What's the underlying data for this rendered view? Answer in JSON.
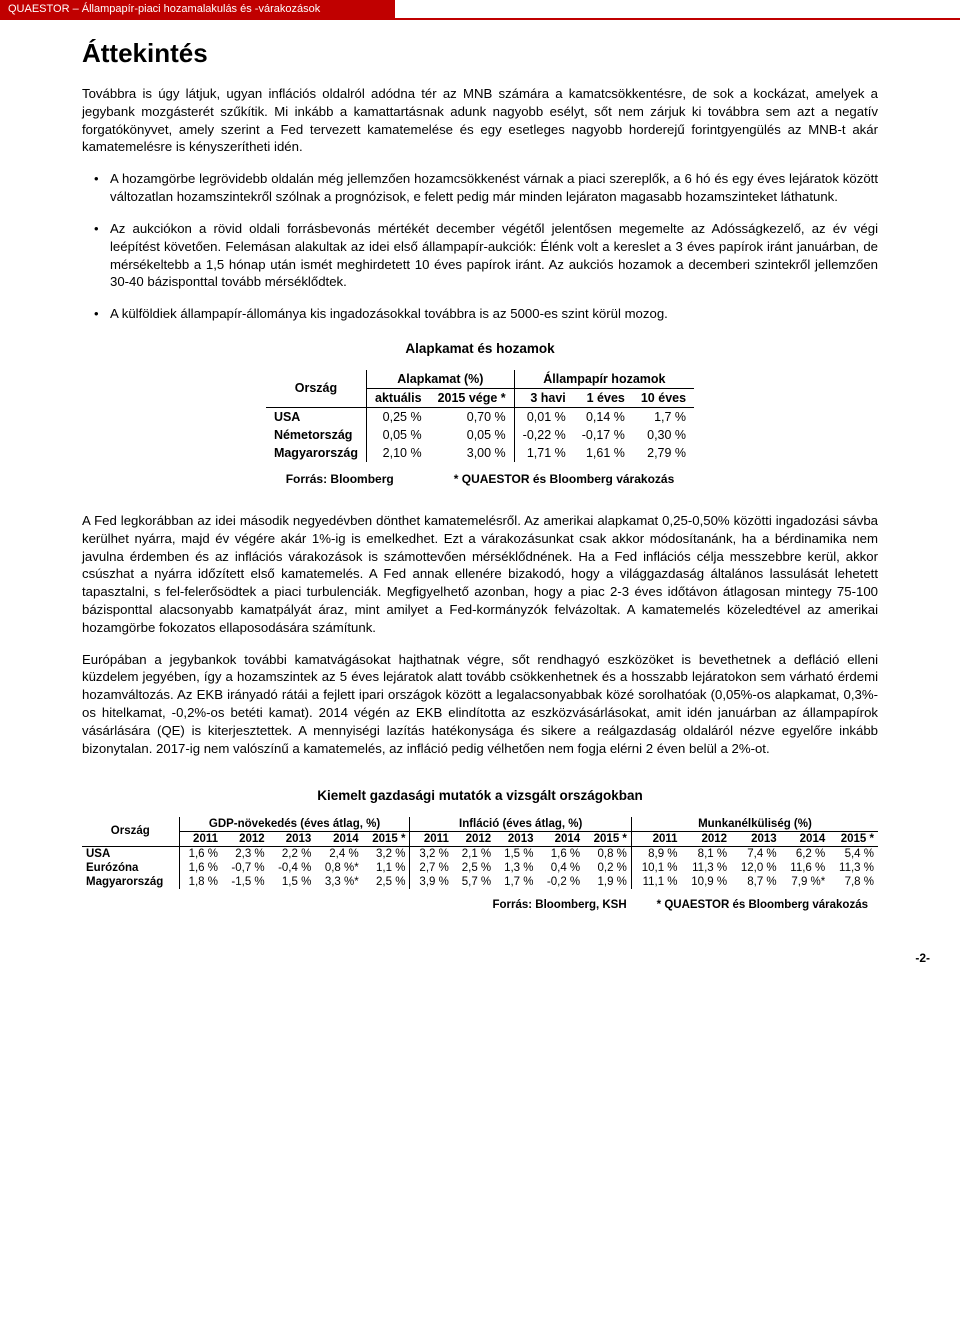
{
  "header": {
    "bar_text": "QUAESTOR – Állampapír-piaci hozamalakulás és -várakozások"
  },
  "title": "Áttekintés",
  "intro": "Továbbra is úgy látjuk, ugyan inflációs oldalról adódna tér az MNB számára a kamatcsökkentésre, de sok a kockázat, amelyek a jegybank mozgásterét szűkítik. Mi inkább a kamattartásnak adunk nagyobb esélyt, sőt nem zárjuk ki továbbra sem azt a negatív forgatókönyvet, amely szerint a Fed tervezett kamatemelése és egy esetleges nagyobb horderejű forintgyengülés az MNB-t akár kamatemelésre is kényszerítheti idén.",
  "bullets": [
    "A hozamgörbe legrövidebb oldalán még jellemzően hozamcsökkenést várnak a piaci szereplők, a 6 hó és egy éves lejáratok között változatlan hozamszintekről szólnak a prognózisok, e felett pedig már minden lejáraton magasabb hozamszinteket láthatunk.",
    "Az aukciókon a rövid oldali forrásbevonás mértékét december végétől jelentősen megemelte az Adósságkezelő, az év végi leépítést követően. Felemásan alakultak az idei első állampapír-aukciók: Élénk volt a kereslet a 3 éves papírok iránt januárban, de mérsékeltebb a 1,5 hónap után ismét meghirdetett 10 éves papírok iránt. Az aukciós hozamok a decemberi szintekről jellemzően 30-40 bázisponttal tovább mérséklődtek.",
    "A külföldiek állampapír-állománya kis ingadozásokkal továbbra is az 5000-es szint körül mozog."
  ],
  "section1_heading": "Alapkamat és hozamok",
  "table1": {
    "head_country": "Ország",
    "head_alapkamat": "Alapkamat (%)",
    "head_allampapir": "Állampapír hozamok",
    "sub_aktualis": "aktuális",
    "sub_2015vege": "2015 vége *",
    "sub_3havi": "3 havi",
    "sub_1eves": "1 éves",
    "sub_10eves": "10 éves",
    "rows": [
      {
        "country": "USA",
        "aktualis": "0,25 %",
        "vege": "0,70 %",
        "h3": "0,01 %",
        "e1": "0,14 %",
        "e10": "1,7 %"
      },
      {
        "country": "Németország",
        "aktualis": "0,05 %",
        "vege": "0,05 %",
        "h3": "-0,22 %",
        "e1": "-0,17 %",
        "e10": "0,30 %"
      },
      {
        "country": "Magyarország",
        "aktualis": "2,10 %",
        "vege": "3,00 %",
        "h3": "1,71 %",
        "e1": "1,61 %",
        "e10": "2,79 %"
      }
    ],
    "footer_left": "Forrás: Bloomberg",
    "footer_right": "* QUAESTOR és Bloomberg várakozás"
  },
  "para1": "A Fed legkorábban az idei második negyedévben dönthet kamatemelésről. Az amerikai alapkamat 0,25-0,50% közötti ingadozási sávba kerülhet nyárra, majd év végére akár 1%-ig is emelkedhet. Ezt a várakozásunkat csak akkor módosítanánk, ha a bérdinamika nem javulna érdemben és az inflációs várakozások is számottevően mérséklődnének. Ha a Fed inflációs célja messzebbre kerül, akkor csúszhat a nyárra időzített első kamatemelés. A Fed annak ellenére bizakodó, hogy a világgazdaság általános lassulását lehetett tapasztalni, s fel-felerősödtek a piaci turbulenciák. Megfigyelhető azonban, hogy a piac 2-3 éves időtávon átlagosan mintegy 75-100 bázisponttal alacsonyabb kamatpályát áraz, mint amilyet a Fed-kormányzók felvázoltak. A kamatemelés közeledtével az amerikai hozamgörbe fokozatos ellaposodására számítunk.",
  "para2": "Európában a jegybankok további kamatvágásokat hajthatnak végre, sőt rendhagyó eszközöket is bevethetnek a defláció elleni küzdelem jegyében, így a hozamszintek az 5 éves lejáratok alatt tovább csökkenhetnek és a hosszabb lejáratokon sem várható érdemi hozamváltozás. Az EKB irányadó rátái a fejlett ipari országok között a legalacsonyabbak közé sorolhatóak (0,05%-os alapkamat, 0,3%-os hitelkamat, -0,2%-os betéti kamat). 2014 végén az EKB elindította az eszközvásárlásokat, amit idén januárban az állampapírok vásárlására (QE) is kiterjesztettek. A mennyiségi lazítás hatékonysága és sikere a reálgazdaság oldaláról nézve egyelőre inkább bizonytalan. 2017-ig nem valószínű a kamatemelés, az infláció pedig vélhetően nem fogja elérni 2 éven belül a 2%-ot.",
  "section2_heading": "Kiemelt gazdasági mutatók a vizsgált országokban",
  "table2": {
    "head_country": "Ország",
    "head_gdp": "GDP-növekedés (éves átlag, %)",
    "head_infl": "Infláció (éves átlag, %)",
    "head_munk": "Munkanélküliség (%)",
    "years": [
      "2011",
      "2012",
      "2013",
      "2014",
      "2015 *"
    ],
    "rows": [
      {
        "country": "USA",
        "gdp": [
          "1,6 %",
          "2,3 %",
          "2,2 %",
          "2,4 %",
          "3,2 %"
        ],
        "infl": [
          "3,2 %",
          "2,1 %",
          "1,5 %",
          "1,6 %",
          "0,8 %"
        ],
        "munk": [
          "8,9 %",
          "8,1 %",
          "7,4 %",
          "6,2 %",
          "5,4 %"
        ]
      },
      {
        "country": "Eurózóna",
        "gdp": [
          "1,6 %",
          "-0,7 %",
          "-0,4 %",
          "0,8 %*",
          "1,1 %"
        ],
        "infl": [
          "2,7 %",
          "2,5 %",
          "1,3 %",
          "0,4 %",
          "0,2 %"
        ],
        "munk": [
          "10,1 %",
          "11,3 %",
          "12,0 %",
          "11,6 %",
          "11,3 %"
        ]
      },
      {
        "country": "Magyarország",
        "gdp": [
          "1,8 %",
          "-1,5 %",
          "1,5 %",
          "3,3 %*",
          "2,5 %"
        ],
        "infl": [
          "3,9 %",
          "5,7 %",
          "1,7 %",
          "-0,2 %",
          "1,9 %"
        ],
        "munk": [
          "11,1 %",
          "10,9 %",
          "8,7 %",
          "7,9 %*",
          "7,8 %"
        ]
      }
    ],
    "footer_left": "Forrás: Bloomberg, KSH",
    "footer_right": "* QUAESTOR és Bloomberg várakozás"
  },
  "page_num": "-2-"
}
